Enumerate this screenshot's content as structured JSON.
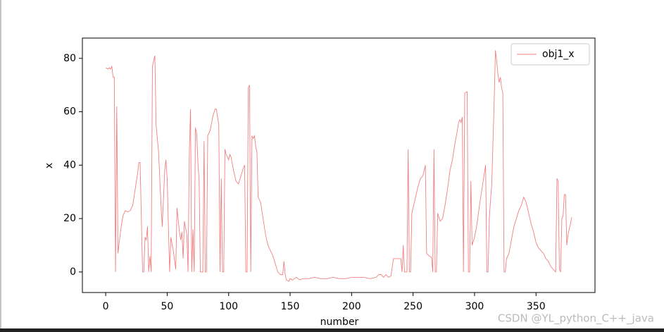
{
  "chart_data": {
    "type": "line",
    "xlabel": "number",
    "ylabel": "x",
    "x": [
      0,
      2,
      3,
      4,
      5,
      6,
      7,
      8,
      9,
      10,
      12,
      14,
      16,
      18,
      20,
      22,
      24,
      26,
      27,
      28,
      30,
      31,
      32,
      33,
      34,
      35,
      36,
      37,
      38,
      40,
      41,
      43,
      45,
      46,
      48,
      49,
      50,
      52,
      53,
      55,
      57,
      58,
      60,
      61,
      62,
      63,
      64,
      66,
      67,
      68,
      69,
      70,
      71,
      72,
      73,
      74,
      75,
      76,
      77,
      79,
      80,
      81,
      82,
      83,
      85,
      87,
      89,
      90,
      91,
      92,
      93,
      94,
      95,
      96,
      97,
      98,
      100,
      101,
      102,
      104,
      106,
      108,
      110,
      112,
      113,
      114,
      115,
      116,
      117,
      118,
      119,
      120,
      121,
      122,
      123,
      124,
      126,
      128,
      130,
      132,
      134,
      136,
      138,
      140,
      142,
      144,
      145,
      146,
      147,
      149,
      150,
      152,
      155,
      158,
      160,
      165,
      170,
      175,
      180,
      185,
      190,
      195,
      200,
      205,
      210,
      215,
      220,
      222,
      224,
      226,
      228,
      230,
      232,
      234,
      236,
      238,
      240,
      241,
      242,
      243,
      245,
      246,
      247,
      248,
      249,
      250,
      252,
      254,
      256,
      258,
      259,
      260,
      261,
      263,
      265,
      266,
      267,
      268,
      269,
      270,
      272,
      274,
      276,
      278,
      280,
      282,
      284,
      286,
      287,
      288,
      289,
      290,
      291,
      292,
      294,
      295,
      296,
      297,
      298,
      300,
      302,
      304,
      306,
      308,
      309,
      310,
      311,
      312,
      313,
      314,
      316,
      317,
      318,
      319,
      320,
      321,
      322,
      323,
      324,
      325,
      326,
      328,
      330,
      332,
      334,
      336,
      338,
      340,
      342,
      344,
      346,
      348,
      350,
      352,
      354,
      356,
      358,
      360,
      362,
      364,
      366,
      367,
      368,
      369,
      370,
      371,
      372,
      373,
      374,
      375,
      376,
      378,
      379
    ],
    "series": [
      {
        "name": "obj1_x",
        "color": "#f08080",
        "values": [
          76.5,
          76,
          76.5,
          76,
          77,
          73,
          73,
          0,
          62,
          7,
          15,
          21,
          23,
          22.5,
          23,
          25,
          31,
          37,
          41,
          41,
          0,
          0,
          13,
          12,
          17,
          0,
          6,
          0,
          77,
          81,
          55,
          45,
          25,
          17,
          38,
          42,
          35,
          0,
          13,
          8,
          1,
          24,
          15,
          12,
          15,
          5,
          19,
          14,
          0,
          44,
          61,
          0,
          16,
          0,
          54,
          52,
          41,
          34,
          0,
          0,
          49,
          0,
          0,
          51,
          53,
          58,
          61,
          61,
          58,
          55,
          0,
          35,
          0,
          0,
          46,
          44,
          42,
          44,
          43,
          38,
          34,
          33,
          36,
          39,
          40,
          0,
          0,
          69,
          70,
          0,
          51,
          50,
          51,
          47,
          45,
          28,
          26,
          20,
          14,
          10,
          8,
          6,
          3,
          0,
          -1,
          -1,
          4,
          -1,
          -3,
          -3.5,
          -2.5,
          -3,
          -2,
          -3,
          -2.5,
          -2.5,
          -2,
          -2.5,
          -2.5,
          -2,
          -2.5,
          -2.5,
          -2,
          -2,
          -2,
          -2.5,
          -2,
          -1,
          -1,
          -2,
          -1,
          -2,
          -1.5,
          5,
          5,
          5,
          5,
          0,
          10,
          0,
          0,
          46,
          0,
          0,
          22,
          24,
          28,
          32,
          35,
          36,
          38,
          40,
          7,
          6,
          5.5,
          0,
          46,
          0,
          0,
          22,
          19,
          20,
          25,
          31,
          38,
          42,
          48,
          53,
          56,
          57,
          56,
          58,
          0,
          67,
          67.5,
          0,
          0,
          34,
          10,
          13,
          18,
          25,
          31,
          37,
          40,
          0,
          0,
          20,
          27,
          33,
          65,
          83,
          79,
          74,
          71,
          73,
          69,
          67,
          0,
          0,
          5,
          7,
          12,
          17,
          20,
          23,
          25,
          28,
          26,
          22,
          18,
          15,
          11,
          9,
          8,
          7,
          5,
          4,
          2,
          1,
          0,
          35,
          34,
          1,
          0,
          20,
          21,
          29,
          29,
          10,
          14,
          18,
          20.5
        ]
      }
    ],
    "xlim": [
      -18.95,
      397.95
    ],
    "ylim": [
      -7.7,
      87.6
    ],
    "xticks": [
      0,
      50,
      100,
      150,
      200,
      250,
      300,
      350
    ],
    "yticks": [
      0,
      20,
      40,
      60,
      80
    ],
    "legend": "upper right"
  },
  "watermark": "CSDN @YL_python_C++_java"
}
